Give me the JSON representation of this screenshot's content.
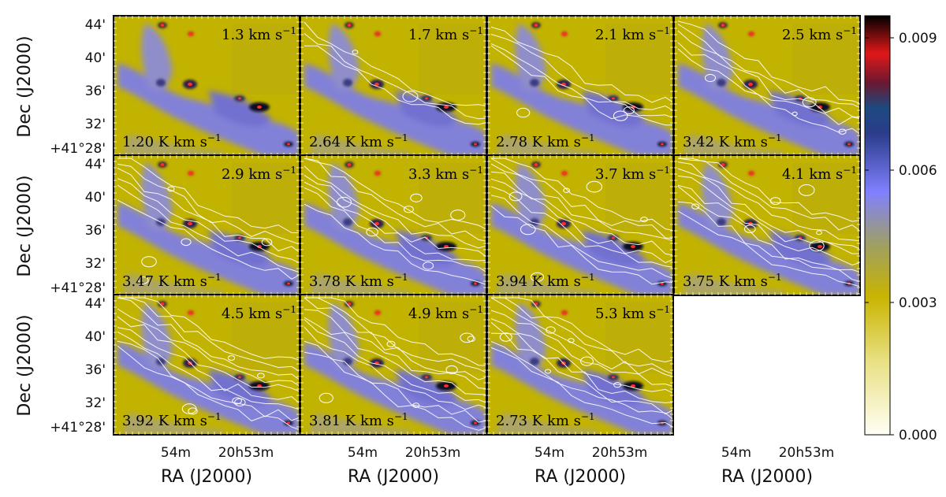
{
  "chart_data": {
    "type": "heatmap",
    "ylabel": "Dec (J2000)",
    "xlabel": "RA (J2000)",
    "y_ticks": [
      "44'",
      "40'",
      "36'",
      "32'",
      "+41°28'"
    ],
    "x_ticks": [
      "54m",
      "20h53m"
    ],
    "colorbar": {
      "ticks": [
        "0.009",
        "0.006",
        "0.003",
        "0.000"
      ],
      "tick_values": [
        0.009,
        0.006,
        0.003,
        0.0
      ],
      "range": [
        0.0,
        0.0095
      ],
      "colors": [
        "#fffff0",
        "#c8b400",
        "#7b7bff",
        "#1b3a6b",
        "#d01020",
        "#000000"
      ]
    },
    "panels": [
      {
        "velocity": "1.3 km s",
        "integrated": "1.20 K km s"
      },
      {
        "velocity": "1.7 km s",
        "integrated": "2.64 K km s"
      },
      {
        "velocity": "2.1 km s",
        "integrated": "2.78 K km s"
      },
      {
        "velocity": "2.5 km s",
        "integrated": "3.42 K km s"
      },
      {
        "velocity": "2.9 km s",
        "integrated": "3.47 K km s"
      },
      {
        "velocity": "3.3 km s",
        "integrated": "3.78 K km s"
      },
      {
        "velocity": "3.7 km s",
        "integrated": "3.94 K km s"
      },
      {
        "velocity": "4.1 km s",
        "integrated": "3.75 K km s"
      },
      {
        "velocity": "4.5 km s",
        "integrated": "3.92 K km s"
      },
      {
        "velocity": "4.9 km s",
        "integrated": "3.81 K km s"
      },
      {
        "velocity": "5.3 km s",
        "integrated": "2.73 K km s"
      }
    ],
    "superscript": "−1"
  }
}
